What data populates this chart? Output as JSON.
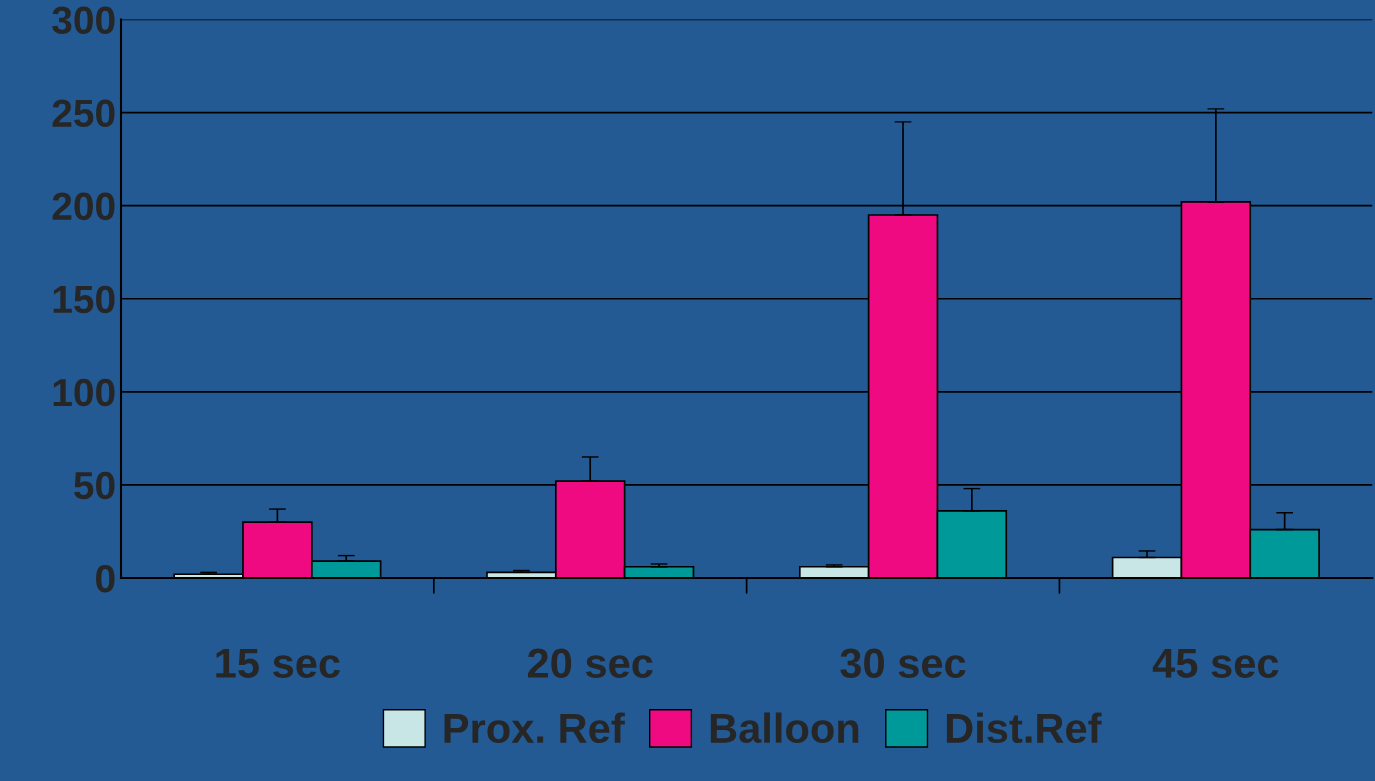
{
  "chart_data": {
    "type": "bar",
    "categories": [
      "15 sec",
      "20 sec",
      "30 sec",
      "45 sec"
    ],
    "series": [
      {
        "name": "Prox. Ref",
        "color": "#c8e6e6",
        "values": [
          2,
          3,
          6,
          11
        ],
        "errors": [
          [
            2,
            3
          ],
          [
            3,
            4
          ],
          [
            6,
            7
          ],
          [
            11,
            14.5
          ]
        ]
      },
      {
        "name": "Balloon",
        "color": "#f00a82",
        "values": [
          30,
          52,
          195,
          202
        ],
        "errors": [
          [
            30,
            37
          ],
          [
            52,
            65
          ],
          [
            195,
            245
          ],
          [
            202,
            252
          ]
        ]
      },
      {
        "name": "Dist.Ref",
        "color": "#009999",
        "values": [
          9,
          6,
          36,
          26
        ],
        "errors": [
          [
            9,
            12
          ],
          [
            6,
            7.5
          ],
          [
            36,
            48
          ],
          [
            26,
            35
          ]
        ]
      }
    ],
    "ylim": [
      0,
      300
    ],
    "yticks": [
      0,
      50,
      100,
      150,
      200,
      250,
      300
    ],
    "grid": "y",
    "legend": "bottom"
  }
}
